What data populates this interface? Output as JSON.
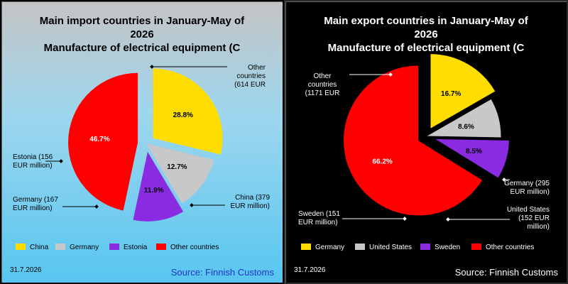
{
  "chart_data": [
    {
      "type": "pie",
      "title_lines": [
        "Main import countries in January-May of",
        "2026",
        "Manufacture of electrical equipment (C"
      ],
      "date": "31.7.2026",
      "source": "Source: Finnish Customs",
      "slices": [
        {
          "name": "China",
          "value": 28.8,
          "pct_label": "28.8%",
          "callout": [
            "China (379",
            "EUR million)"
          ],
          "color": "#ffdd00",
          "exploded": true
        },
        {
          "name": "Germany",
          "value": 12.7,
          "pct_label": "12.7%",
          "callout": [
            "Germany (167",
            "EUR million)"
          ],
          "color": "#c8c8c8",
          "exploded": false
        },
        {
          "name": "Estonia",
          "value": 11.9,
          "pct_label": "11.9%",
          "callout": [
            "Estonia (156",
            "EUR million)"
          ],
          "color": "#8a2be2",
          "exploded": true
        },
        {
          "name": "Other countries",
          "value": 46.7,
          "pct_label": "46.7%",
          "callout": [
            "Other",
            "countries",
            "(614 EUR"
          ],
          "color": "#ff0000",
          "exploded": true
        }
      ],
      "legend": [
        "China",
        "Germany",
        "Estonia",
        "Other countries"
      ]
    },
    {
      "type": "pie",
      "title_lines": [
        "Main export countries in January-May of",
        "2026",
        "Manufacture of electrical equipment (C"
      ],
      "date": "31.7.2026",
      "source": "Source: Finnish Customs",
      "slices": [
        {
          "name": "Germany",
          "value": 16.7,
          "pct_label": "16.7%",
          "callout": [
            "Germany (295",
            "EUR million)"
          ],
          "color": "#ffdd00",
          "exploded": true
        },
        {
          "name": "United States",
          "value": 8.6,
          "pct_label": "8.6%",
          "callout": [
            "United States",
            "(152 EUR",
            "million)"
          ],
          "color": "#c8c8c8",
          "exploded": false
        },
        {
          "name": "Sweden",
          "value": 8.5,
          "pct_label": "8.5%",
          "callout": [
            "Sweden (151",
            "EUR million)"
          ],
          "color": "#8a2be2",
          "exploded": true
        },
        {
          "name": "Other countries",
          "value": 66.2,
          "pct_label": "66.2%",
          "callout": [
            "Other",
            "countries",
            "(1171 EUR"
          ],
          "color": "#ff0000",
          "exploded": true
        }
      ],
      "legend": [
        "Germany",
        "United States",
        "Sweden",
        "Other countries"
      ]
    }
  ]
}
